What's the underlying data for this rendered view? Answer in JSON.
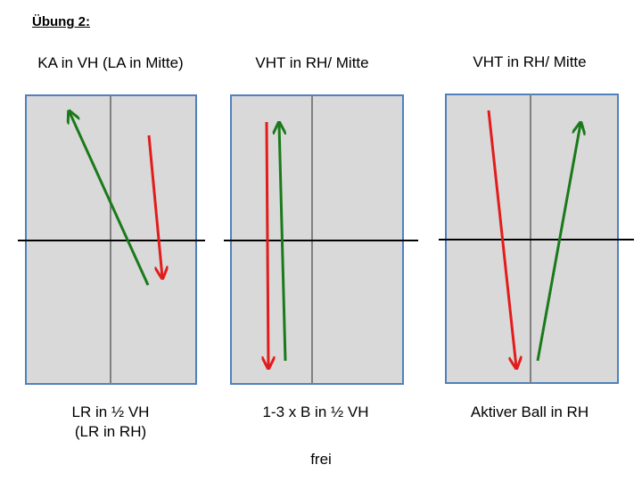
{
  "title": "Übung 2:",
  "panels": [
    {
      "heading": "KA in VH (LA in Mitte)",
      "caption": [
        "LR in ½ VH",
        "(LR in RH)"
      ],
      "arrows": [
        {
          "color": "green",
          "hex": "#1a7a1a"
        },
        {
          "color": "red",
          "hex": "#e31b1b"
        }
      ]
    },
    {
      "heading": "VHT in RH/ Mitte",
      "caption": [
        "1-3 x B in ½ VH"
      ],
      "arrows": [
        {
          "color": "red",
          "hex": "#e31b1b"
        },
        {
          "color": "green",
          "hex": "#1a7a1a"
        }
      ]
    },
    {
      "heading": "VHT in RH/ Mitte",
      "caption": [
        "Aktiver Ball in RH"
      ],
      "arrows": [
        {
          "color": "red",
          "hex": "#e31b1b"
        },
        {
          "color": "green",
          "hex": "#1a7a1a"
        }
      ]
    }
  ],
  "footer": "frei",
  "colors": {
    "table_fill": "#d9d9d9",
    "table_border": "#4f81bd",
    "center_line": "#808080",
    "net_line": "#000000"
  }
}
